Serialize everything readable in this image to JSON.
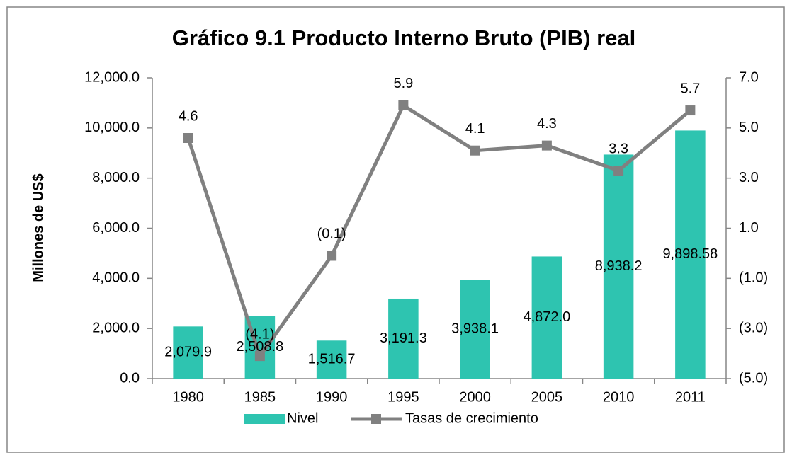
{
  "chart_data": {
    "type": "bar-line",
    "title": "Gráfico 9.1 Producto Interno Bruto (PIB) real",
    "y_label": "Millones de US$",
    "categories": [
      "1980",
      "1985",
      "1990",
      "1995",
      "2000",
      "2005",
      "2010",
      "2011"
    ],
    "series": [
      {
        "name": "Nivel",
        "type": "bar",
        "color": "#2ec4b0",
        "values": [
          2079.9,
          2508.8,
          1516.7,
          3191.3,
          3938.1,
          4872.0,
          8938.2,
          9898.58
        ],
        "value_labels": [
          "2,079.9",
          "2,508.8",
          "1,516.7",
          "3,191.3",
          "3,938.1",
          "4,872.0",
          "8,938.2",
          "9,898.58"
        ]
      },
      {
        "name": "Tasas de crecimiento",
        "type": "line",
        "axis": "y2",
        "color": "#808080",
        "values": [
          4.6,
          -4.1,
          -0.1,
          5.9,
          4.1,
          4.3,
          3.3,
          5.7
        ],
        "value_labels": [
          "4.6",
          "(4.1)",
          "(0.1)",
          "5.9",
          "4.1",
          "4.3",
          "3.3",
          "5.7"
        ]
      }
    ],
    "ylim": [
      0,
      12000
    ],
    "yticks": [
      {
        "value": 0,
        "label": "0.0"
      },
      {
        "value": 2000,
        "label": "2,000.0"
      },
      {
        "value": 4000,
        "label": "4,000.0"
      },
      {
        "value": 6000,
        "label": "6,000.0"
      },
      {
        "value": 8000,
        "label": "8,000.0"
      },
      {
        "value": 10000,
        "label": "10,000.0"
      },
      {
        "value": 12000,
        "label": "12,000.0"
      }
    ],
    "y2lim": [
      -5,
      7
    ],
    "y2ticks": [
      {
        "value": -5,
        "label": "(5.0)"
      },
      {
        "value": -3,
        "label": "(3.0)"
      },
      {
        "value": -1,
        "label": "(1.0)"
      },
      {
        "value": 1,
        "label": "1.0"
      },
      {
        "value": 3,
        "label": "3.0"
      },
      {
        "value": 5,
        "label": "5.0"
      },
      {
        "value": 7,
        "label": "7.0"
      }
    ],
    "grid": false,
    "legend": "bottom"
  }
}
